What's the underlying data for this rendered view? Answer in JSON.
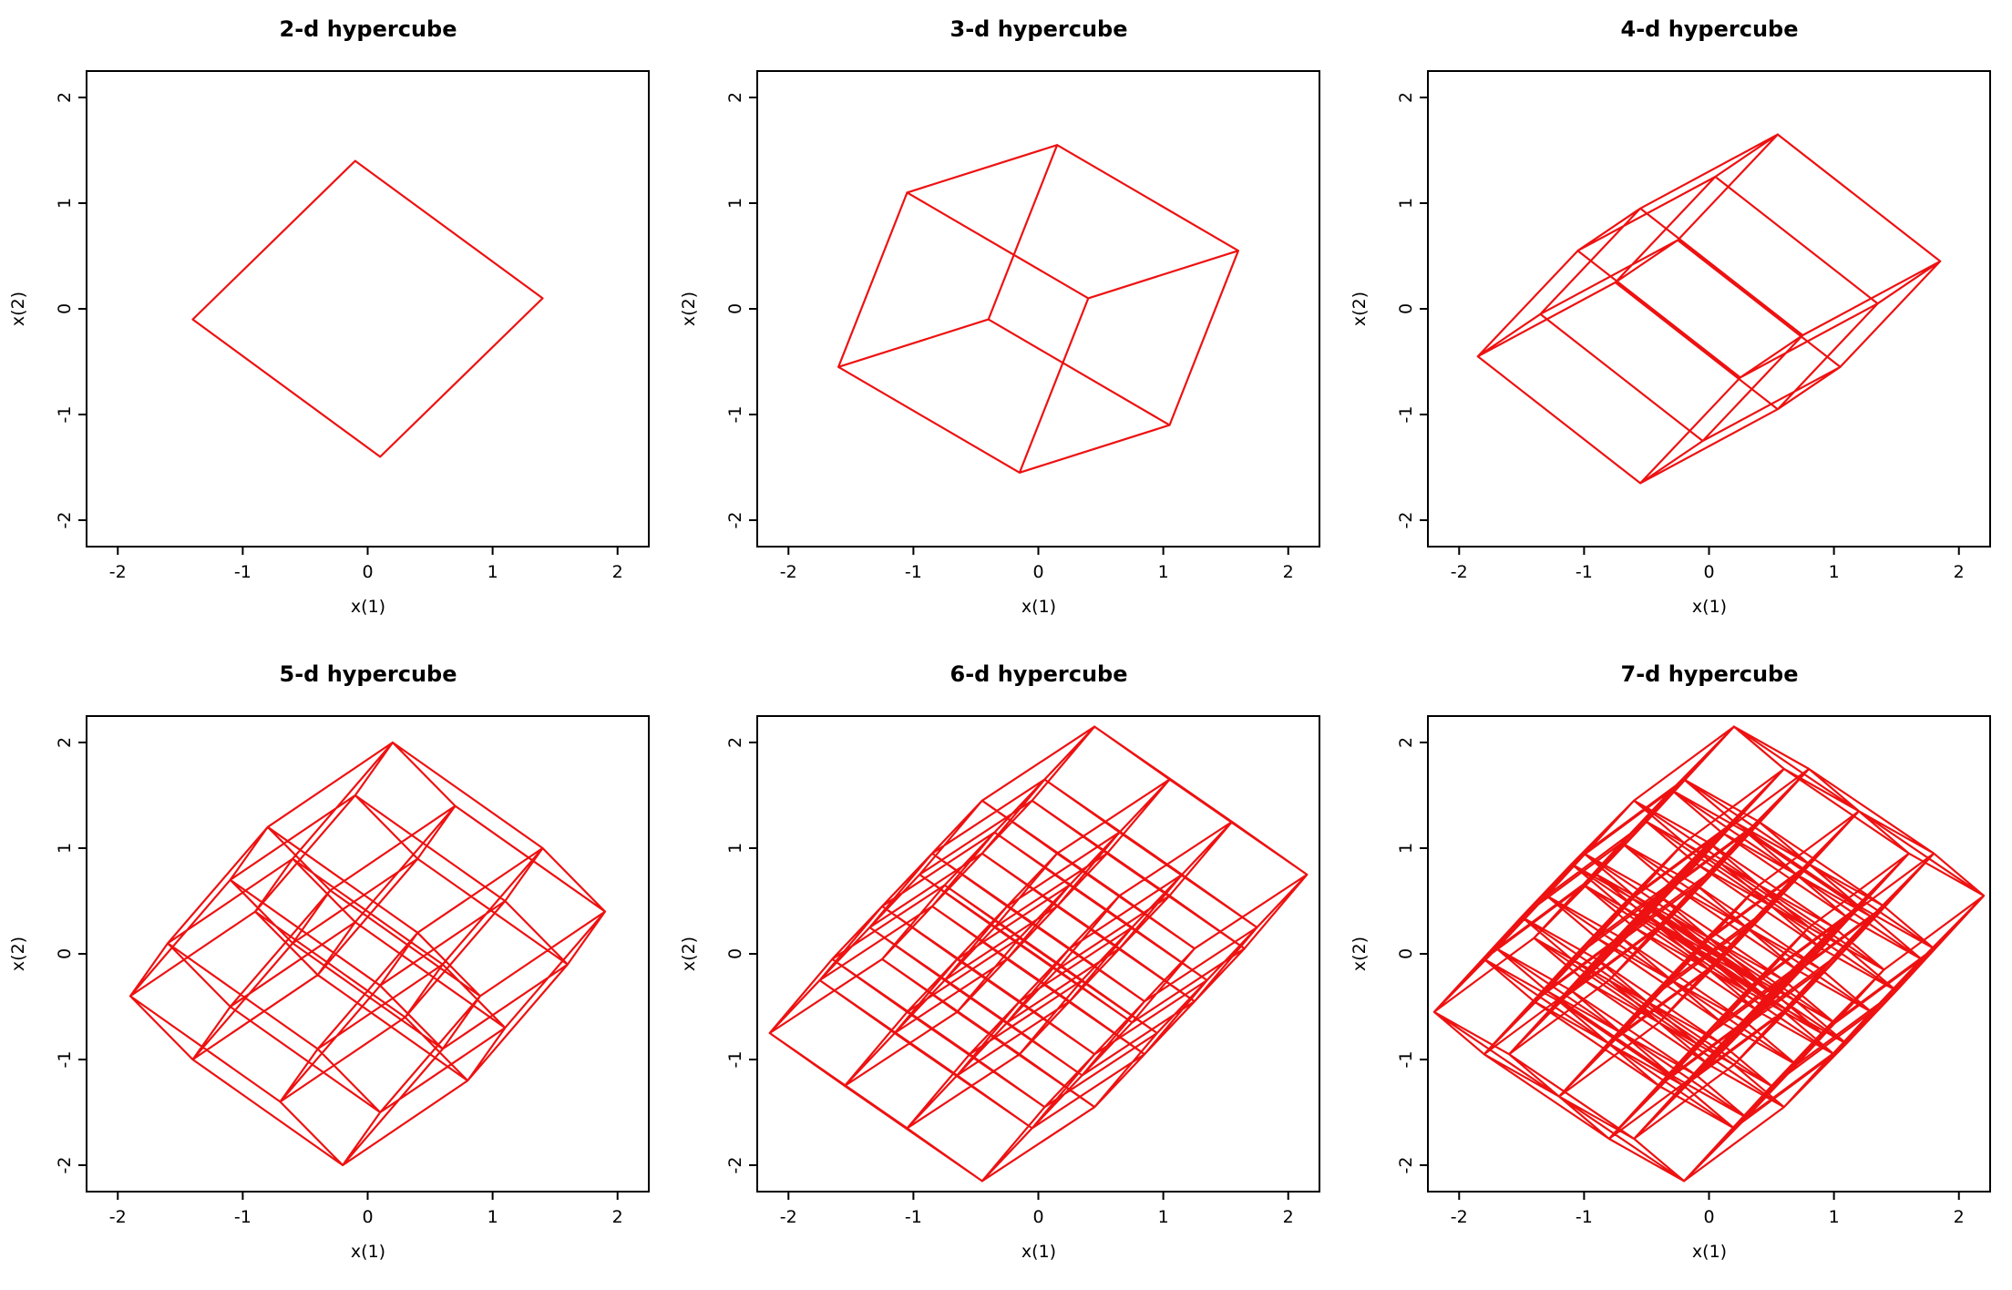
{
  "page": {
    "background": "#ffffff",
    "axis_color": "#000000"
  },
  "chart_data": [
    {
      "type": "line",
      "title": "2-d hypercube",
      "xlabel": "x(1)",
      "ylabel": "x(2)",
      "dimension": 2,
      "xlim": [
        -2.25,
        2.25
      ],
      "ylim": [
        -2.25,
        2.25
      ],
      "xticks": [
        -2,
        -1,
        0,
        1,
        2
      ],
      "yticks": [
        -2,
        -1,
        0,
        1,
        2
      ],
      "grid": false,
      "line_color": "#ee1111",
      "projection": [
        [
          0.75,
          -0.65
        ],
        [
          0.65,
          0.75
        ]
      ]
    },
    {
      "type": "line",
      "title": "3-d hypercube",
      "xlabel": "x(1)",
      "ylabel": "x(2)",
      "dimension": 3,
      "xlim": [
        -2.25,
        2.25
      ],
      "ylim": [
        -2.25,
        2.25
      ],
      "xticks": [
        -2,
        -1,
        0,
        1,
        2
      ],
      "yticks": [
        -2,
        -1,
        0,
        1,
        2
      ],
      "grid": false,
      "line_color": "#ee1111",
      "projection": [
        [
          0.725,
          -0.5
        ],
        [
          0.6,
          0.225
        ],
        [
          0.275,
          0.825
        ]
      ]
    },
    {
      "type": "line",
      "title": "4-d hypercube",
      "xlabel": "x(1)",
      "ylabel": "x(2)",
      "dimension": 4,
      "xlim": [
        -2.25,
        2.25
      ],
      "ylim": [
        -2.25,
        2.25
      ],
      "xticks": [
        -2,
        -1,
        0,
        1,
        2
      ],
      "yticks": [
        -2,
        -1,
        0,
        1,
        2
      ],
      "grid": false,
      "line_color": "#ee1111",
      "projection": [
        [
          0.65,
          -0.6
        ],
        [
          0.55,
          0.35
        ],
        [
          0.4,
          0.5
        ],
        [
          0.25,
          0.2
        ]
      ]
    },
    {
      "type": "line",
      "title": "5-d hypercube",
      "xlabel": "x(1)",
      "ylabel": "x(2)",
      "dimension": 5,
      "xlim": [
        -2.25,
        2.25
      ],
      "ylim": [
        -2.25,
        2.25
      ],
      "xticks": [
        -2,
        -1,
        0,
        1,
        2
      ],
      "yticks": [
        -2,
        -1,
        0,
        1,
        2
      ],
      "grid": false,
      "line_color": "#ee1111",
      "projection": [
        [
          0.6,
          -0.5
        ],
        [
          0.5,
          0.4
        ],
        [
          0.4,
          0.55
        ],
        [
          0.25,
          -0.3
        ],
        [
          0.15,
          0.25
        ]
      ]
    },
    {
      "type": "line",
      "title": "6-d hypercube",
      "xlabel": "x(1)",
      "ylabel": "x(2)",
      "dimension": 6,
      "xlim": [
        -2.25,
        2.25
      ],
      "ylim": [
        -2.25,
        2.25
      ],
      "xticks": [
        -2,
        -1,
        0,
        1,
        2
      ],
      "yticks": [
        -2,
        -1,
        0,
        1,
        2
      ],
      "grid": false,
      "line_color": "#ee1111",
      "projection": [
        [
          0.55,
          -0.45
        ],
        [
          0.45,
          0.35
        ],
        [
          0.4,
          0.5
        ],
        [
          0.3,
          -0.25
        ],
        [
          0.25,
          0.35
        ],
        [
          0.2,
          0.25
        ]
      ]
    },
    {
      "type": "line",
      "title": "7-d hypercube",
      "xlabel": "x(1)",
      "ylabel": "x(2)",
      "dimension": 7,
      "xlim": [
        -2.25,
        2.25
      ],
      "ylim": [
        -2.25,
        2.25
      ],
      "xticks": [
        -2,
        -1,
        0,
        1,
        2
      ],
      "yticks": [
        -2,
        -1,
        0,
        1,
        2
      ],
      "grid": false,
      "line_color": "#ee1111",
      "projection": [
        [
          0.5,
          -0.4
        ],
        [
          0.4,
          0.35
        ],
        [
          0.35,
          0.45
        ],
        [
          0.3,
          -0.2
        ],
        [
          0.25,
          0.3
        ],
        [
          0.2,
          0.25
        ],
        [
          0.2,
          -0.2
        ]
      ]
    }
  ]
}
